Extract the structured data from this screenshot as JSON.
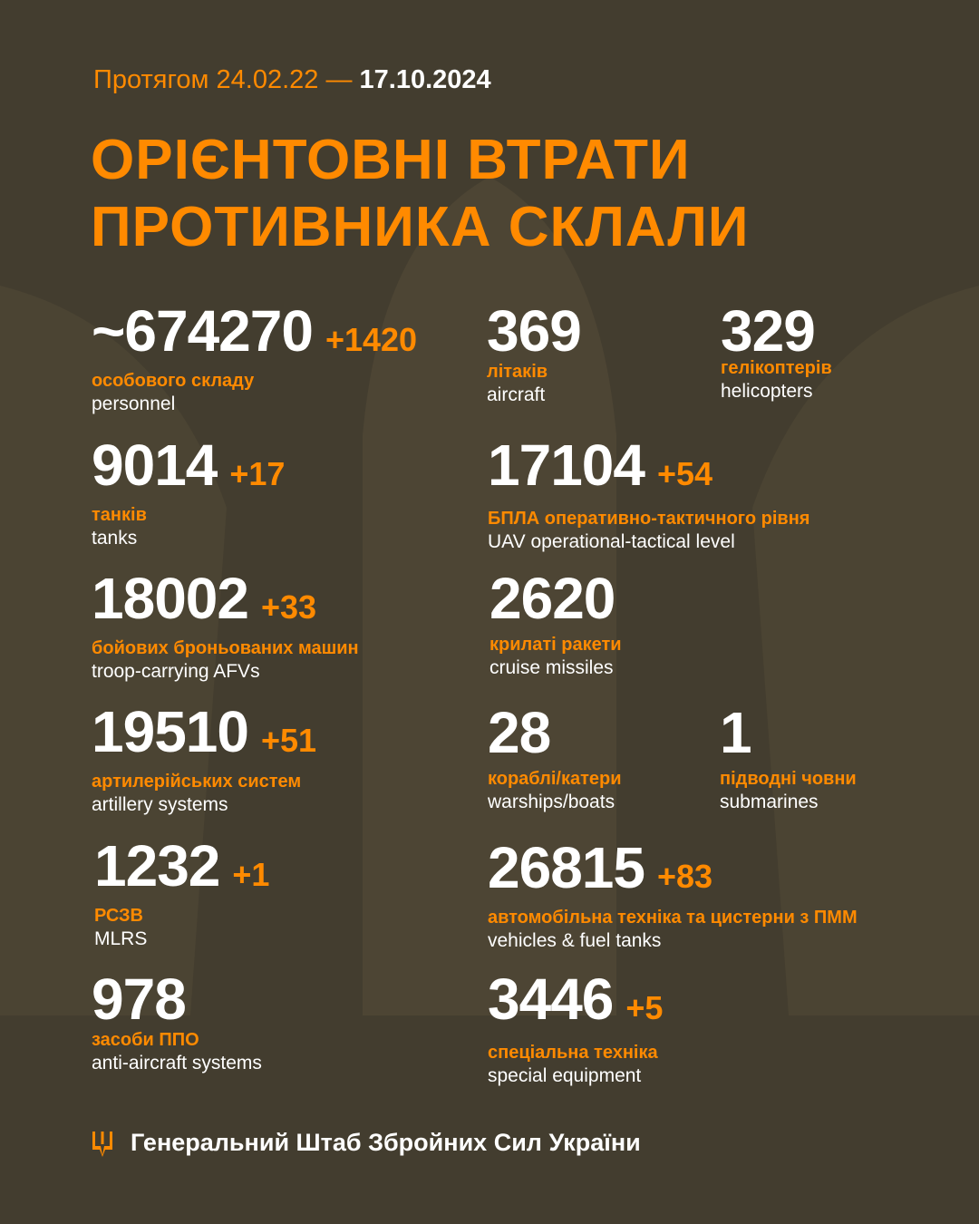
{
  "header": {
    "period_prefix": "Протягом 24.02.22 —",
    "period_end": "17.10.2024",
    "title_line1": "ОРІЄНТОВНІ ВТРАТИ",
    "title_line2": "ПРОТИВНИКА СКЛАЛИ"
  },
  "colors": {
    "background": "#433d2f",
    "accent": "#ff8a00",
    "text": "#ffffff"
  },
  "items": [
    {
      "value": "~674270",
      "increase": "+1420",
      "ua": "особового складу",
      "en": "personnel"
    },
    {
      "value": "369",
      "increase": "",
      "ua": "літаків",
      "en": "aircraft"
    },
    {
      "value": "329",
      "increase": "",
      "ua": "гелікоптерів",
      "en": "helicopters"
    },
    {
      "value": "9014",
      "increase": "+17",
      "ua": "танків",
      "en": "tanks"
    },
    {
      "value": "17104",
      "increase": "+54",
      "ua": "БПЛА оперативно-тактичного рівня",
      "en": "UAV operational-tactical level"
    },
    {
      "value": "18002",
      "increase": "+33",
      "ua": "бойових броньованих машин",
      "en": "troop-carrying AFVs"
    },
    {
      "value": "2620",
      "increase": "",
      "ua": "крилаті ракети",
      "en": "cruise missiles"
    },
    {
      "value": "19510",
      "increase": "+51",
      "ua": "артилерійських систем",
      "en": "artillery systems"
    },
    {
      "value": "28",
      "increase": "",
      "ua": "кораблі/катери",
      "en": "warships/boats"
    },
    {
      "value": "1",
      "increase": "",
      "ua": "підводні човни",
      "en": "submarines"
    },
    {
      "value": "1232",
      "increase": "+1",
      "ua": "РСЗВ",
      "en": "MLRS"
    },
    {
      "value": "26815",
      "increase": "+83",
      "ua": "автомобільна техніка та цистерни з ПММ",
      "en": "vehicles & fuel tanks"
    },
    {
      "value": "978",
      "increase": "",
      "ua": "засоби ППО",
      "en": "anti-aircraft systems"
    },
    {
      "value": "3446",
      "increase": "+5",
      "ua": "спеціальна техніка",
      "en": "special equipment"
    }
  ],
  "footer": {
    "icon": "trident-icon",
    "text": "Генеральний Штаб Збройних Сил України"
  }
}
